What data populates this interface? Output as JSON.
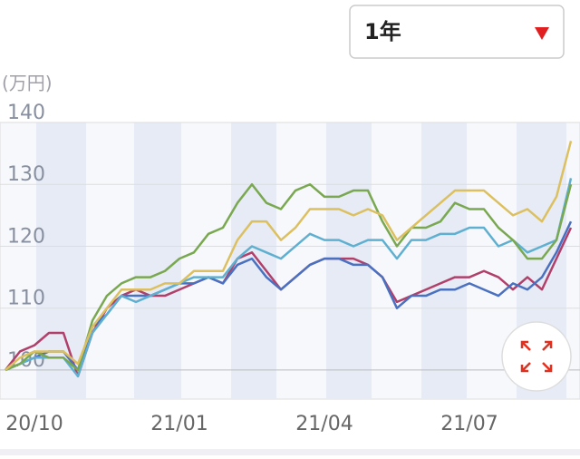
{
  "chart_data": {
    "type": "line",
    "unit": "(万円)",
    "period": "1年",
    "categories": [
      null,
      null,
      "20/10",
      null,
      null,
      null,
      null,
      null,
      null,
      null,
      null,
      null,
      "21/01",
      null,
      null,
      null,
      null,
      null,
      null,
      null,
      null,
      null,
      "21/04",
      null,
      null,
      null,
      null,
      null,
      null,
      null,
      null,
      null,
      "21/07",
      null,
      null,
      null,
      null,
      null,
      null,
      null
    ],
    "series": [
      {
        "color": "#b0406a",
        "values": [
          100,
          103,
          104,
          106,
          106,
          99,
          106,
          110,
          112,
          113,
          112,
          112,
          113,
          114,
          115,
          114,
          118,
          119,
          116,
          113,
          115,
          117,
          118,
          118,
          118,
          117,
          115,
          111,
          112,
          113,
          114,
          115,
          115,
          116,
          115,
          113,
          115,
          113,
          118,
          123
        ]
      },
      {
        "color": "#4a70c0",
        "values": [
          100,
          101,
          102,
          103,
          103,
          100,
          107,
          109,
          112,
          112,
          112,
          113,
          114,
          114,
          115,
          114,
          117,
          118,
          115,
          113,
          115,
          117,
          118,
          118,
          117,
          117,
          115,
          110,
          112,
          112,
          113,
          113,
          114,
          113,
          112,
          114,
          113,
          115,
          119,
          124
        ]
      },
      {
        "color": "#5fb0d0",
        "values": [
          100,
          101,
          102,
          102,
          102,
          99,
          106,
          109,
          112,
          111,
          112,
          113,
          114,
          115,
          115,
          115,
          118,
          120,
          119,
          118,
          120,
          122,
          121,
          121,
          120,
          121,
          121,
          118,
          121,
          121,
          122,
          122,
          123,
          123,
          120,
          121,
          119,
          120,
          121,
          131
        ]
      },
      {
        "color": "#7aa850",
        "values": [
          100,
          101,
          103,
          102,
          102,
          100,
          108,
          112,
          114,
          115,
          115,
          116,
          118,
          119,
          122,
          123,
          127,
          130,
          127,
          126,
          129,
          130,
          128,
          128,
          129,
          129,
          124,
          120,
          123,
          123,
          124,
          127,
          126,
          126,
          123,
          121,
          118,
          118,
          121,
          130
        ]
      },
      {
        "color": "#dcc060",
        "values": [
          100,
          102,
          103,
          103,
          103,
          101,
          107,
          110,
          113,
          113,
          113,
          114,
          114,
          116,
          116,
          116,
          121,
          124,
          124,
          121,
          123,
          126,
          126,
          126,
          125,
          126,
          125,
          121,
          123,
          125,
          127,
          129,
          129,
          129,
          127,
          125,
          126,
          124,
          128,
          137
        ]
      }
    ],
    "ylim": [
      95.3,
      140
    ],
    "yticks": [
      100,
      110,
      120,
      130,
      140
    ]
  }
}
